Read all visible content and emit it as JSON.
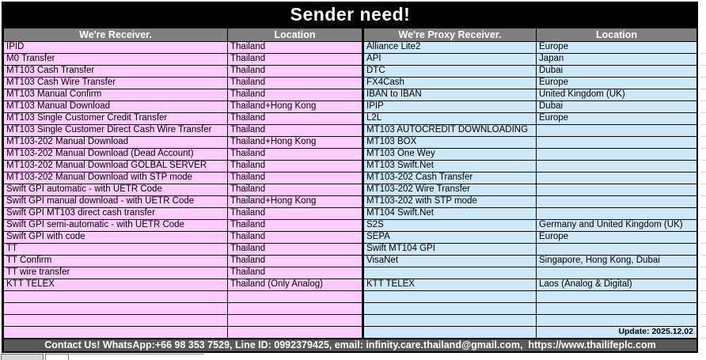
{
  "title": "Sender need!",
  "table": {
    "headers": [
      "We're Receiver.",
      "Location",
      "We're Proxy Receiver.",
      "Location"
    ],
    "rows": [
      {
        "receiver": "IPID",
        "receiver_location": "Thailand",
        "proxy": "Alliance Lite2",
        "proxy_location": "Europe"
      },
      {
        "receiver": "M0 Transfer",
        "receiver_location": "Thailand",
        "proxy": "API",
        "proxy_location": "Japan"
      },
      {
        "receiver": "MT103 Cash Transfer",
        "receiver_location": "Thailand",
        "proxy": "DTC",
        "proxy_location": "Dubai"
      },
      {
        "receiver": "MT103 Cash Wire Transfer",
        "receiver_location": "Thailand",
        "proxy": "FX4Cash",
        "proxy_location": "Europe"
      },
      {
        "receiver": "MT103 Manual Confirm",
        "receiver_location": "Thailand",
        "proxy": "IBAN to IBAN",
        "proxy_location": "United Kingdom (UK)"
      },
      {
        "receiver": "MT103 Manual Download",
        "receiver_location": "Thailand+Hong Kong",
        "proxy": "IPIP",
        "proxy_location": "Dubai"
      },
      {
        "receiver": "MT103 Single Customer Credit Transfer",
        "receiver_location": "Thailand",
        "proxy": "L2L",
        "proxy_location": "Europe"
      },
      {
        "receiver": "MT103 Single Customer Direct Cash Wire Transfer",
        "receiver_location": "Thailand",
        "proxy": "MT103 AUTOCREDIT DOWNLOADING",
        "proxy_location": ""
      },
      {
        "receiver": "MT103-202 Manual Download",
        "receiver_location": "Thailand+Hong Kong",
        "proxy": "MT103 BOX",
        "proxy_location": ""
      },
      {
        "receiver": "MT103-202 Manual Download (Dead Account)",
        "receiver_location": "Thailand",
        "proxy": "MT103 One Wey",
        "proxy_location": ""
      },
      {
        "receiver": "MT103-202 Manual Download GOLBAL SERVER",
        "receiver_location": "Thailand",
        "proxy": "MT103 Swift.Net",
        "proxy_location": ""
      },
      {
        "receiver": "MT103-202 Manual Download with STP mode",
        "receiver_location": "Thailand",
        "proxy": "MT103-202 Cash Transfer",
        "proxy_location": ""
      },
      {
        "receiver": "Swift GPI automatic - with UETR Code",
        "receiver_location": "Thailand",
        "proxy": "MT103-202 Wire Transfer",
        "proxy_location": ""
      },
      {
        "receiver": "Swift GPI manual download - with UETR Code",
        "receiver_location": "Thailand+Hong Kong",
        "proxy": "MT103-202 with STP mode",
        "proxy_location": ""
      },
      {
        "receiver": "Swift GPI MT103 direct cash transfer",
        "receiver_location": "Thailand",
        "proxy": "MT104 Swift.Net",
        "proxy_location": ""
      },
      {
        "receiver": "Swift GPI semi-automatic - with UETR Code",
        "receiver_location": "Thailand",
        "proxy": "S2S",
        "proxy_location": "Germany and United Kingdom (UK)"
      },
      {
        "receiver": "Swift GPI with code",
        "receiver_location": "Thailand",
        "proxy": "SEPA",
        "proxy_location": "Europe"
      },
      {
        "receiver": "TT",
        "receiver_location": "Thailand",
        "proxy": "Swift MT104 GPI",
        "proxy_location": ""
      },
      {
        "receiver": "TT Confirm",
        "receiver_location": "Thailand",
        "proxy": "VisaNet",
        "proxy_location": "Singapore, Hong Kong, Dubai"
      },
      {
        "receiver": "TT wire transfer",
        "receiver_location": "Thailand",
        "proxy": "",
        "proxy_location": ""
      },
      {
        "receiver": "KTT TELEX",
        "receiver_location": "Thailand (Only Analog)",
        "proxy": "KTT TELEX",
        "proxy_location": "Laos (Analog & Digital)"
      },
      {
        "receiver": "",
        "receiver_location": "",
        "proxy": "",
        "proxy_location": ""
      },
      {
        "receiver": "",
        "receiver_location": "",
        "proxy": "",
        "proxy_location": ""
      },
      {
        "receiver": "",
        "receiver_location": "",
        "proxy": "",
        "proxy_location": ""
      },
      {
        "receiver": "",
        "receiver_location": "",
        "proxy": "",
        "proxy_location": ""
      }
    ],
    "update": {
      "text": "Update: 2025.12.02",
      "row_index": 24
    }
  },
  "footer": {
    "contact": "Contact Us! WhatsApp:+66 98 353 7529, Line ID: 0992379425, email: infinity.care.thailand@gmail.com,  https://www.thailifeplc.com"
  },
  "colors": {
    "pink": "#FFCCFF",
    "blue": "#CDE8F9",
    "header_bg": "#7F7F7F",
    "footer_bg": "#595959",
    "title_bg": "#000000"
  }
}
